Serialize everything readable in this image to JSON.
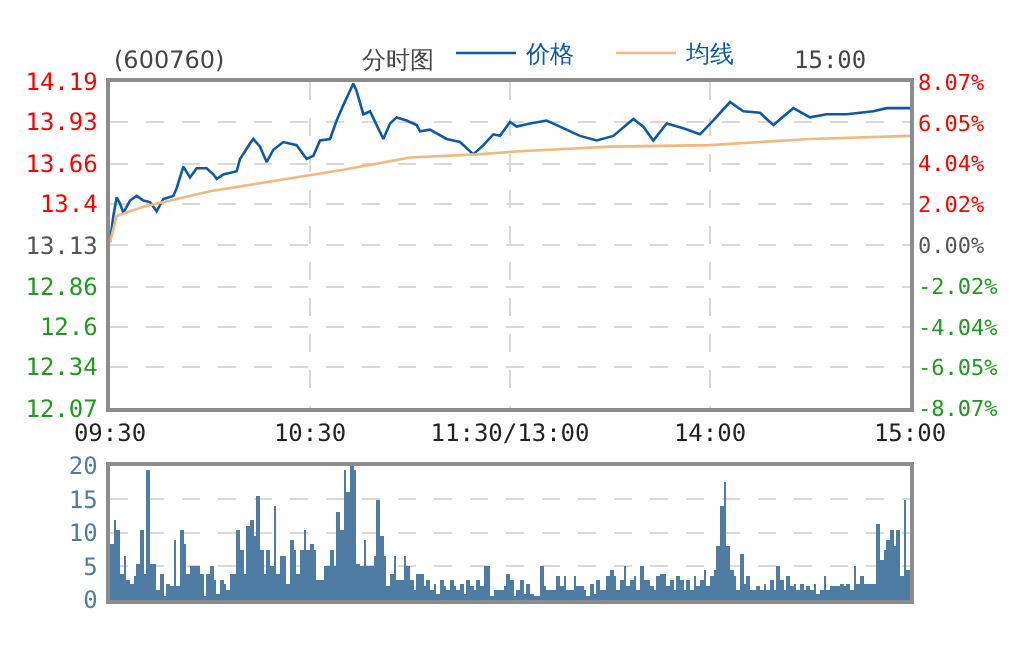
{
  "chart_data": [
    {
      "type": "line",
      "title": "(600760)",
      "subtitle": "分时图",
      "annotations": [
        "15:00"
      ],
      "legend": "top",
      "grid": true,
      "tick_labels": "xy",
      "categories": [
        "09:30",
        null,
        null,
        null,
        null,
        null,
        null,
        null,
        null,
        null,
        null,
        null,
        null,
        null,
        null,
        null,
        null,
        null,
        null,
        null,
        null,
        null,
        null,
        null,
        null,
        null,
        null,
        null,
        null,
        null,
        null,
        null,
        null,
        null,
        null,
        null,
        null,
        null,
        null,
        null,
        null,
        null,
        null,
        null,
        null,
        null,
        null,
        null,
        null,
        null,
        null,
        null,
        null,
        null,
        null,
        null,
        null,
        null,
        null,
        null,
        "10:30",
        null,
        null,
        null,
        null,
        null,
        null,
        null,
        null,
        null,
        null,
        null,
        null,
        null,
        null,
        null,
        null,
        null,
        null,
        null,
        null,
        null,
        null,
        null,
        null,
        null,
        null,
        null,
        null,
        null,
        null,
        null,
        null,
        null,
        null,
        null,
        null,
        null,
        null,
        null,
        null,
        null,
        null,
        null,
        null,
        null,
        null,
        null,
        null,
        null,
        null,
        null,
        null,
        null,
        null,
        null,
        null,
        null,
        null,
        null,
        "11:30/13:00",
        null,
        null,
        null,
        null,
        null,
        null,
        null,
        null,
        null,
        null,
        null,
        null,
        null,
        null,
        null,
        null,
        null,
        null,
        null,
        null,
        null,
        null,
        null,
        null,
        null,
        null,
        null,
        null,
        null,
        null,
        null,
        null,
        null,
        null,
        null,
        null,
        null,
        null,
        null,
        null,
        null,
        null,
        null,
        null,
        null,
        null,
        null,
        null,
        null,
        null,
        null,
        null,
        null,
        null,
        null,
        null,
        null,
        null,
        null,
        "14:00",
        null,
        null,
        null,
        null,
        null,
        null,
        null,
        null,
        null,
        null,
        null,
        null,
        null,
        null,
        null,
        null,
        null,
        null,
        null,
        null,
        null,
        null,
        null,
        null,
        null,
        null,
        null,
        null,
        null,
        null,
        null,
        null,
        null,
        null,
        null,
        null,
        null,
        null,
        null,
        null,
        null,
        null,
        null,
        null,
        null,
        null,
        null,
        null,
        null,
        null,
        null,
        null,
        null,
        null,
        null,
        null,
        null,
        null,
        null,
        "15:00"
      ],
      "ylim": [
        12.07,
        14.19
      ],
      "yticks": [
        12.07,
        12.34,
        12.6,
        12.86,
        13.13,
        13.4,
        13.66,
        13.93,
        14.19
      ],
      "y2lim": [
        -8.07,
        8.07
      ],
      "y2ticks": [
        {
          "value": -8.07,
          "label": "-8.07%"
        },
        {
          "value": -6.05,
          "label": "-6.05%"
        },
        {
          "value": -4.04,
          "label": "-4.04%"
        },
        {
          "value": -2.02,
          "label": "-2.02%"
        },
        {
          "value": 0,
          "label": "0.00%"
        },
        {
          "value": 2.02,
          "label": "2.02%"
        },
        {
          "value": 4.04,
          "label": "4.04%"
        },
        {
          "value": 6.05,
          "label": "6.05%"
        },
        {
          "value": 8.07,
          "label": "8.07%"
        }
      ],
      "series": [
        {
          "name": "价格",
          "color": "#0a5aa8",
          "values": [
            13.15,
            13.32,
            13.44,
            13.4,
            13.34,
            null,
            13.42,
            null,
            13.45,
            null,
            13.42,
            null,
            13.41,
            null,
            13.35,
            null,
            13.43,
            null,
            null,
            13.45,
            13.5,
            null,
            13.64,
            null,
            13.57,
            null,
            13.63,
            null,
            null,
            13.63,
            null,
            13.59,
            13.56,
            null,
            13.59,
            null,
            null,
            null,
            13.61,
            13.69,
            null,
            null,
            13.79,
            13.82,
            null,
            13.77,
            null,
            13.67,
            null,
            13.75,
            null,
            null,
            13.8,
            null,
            null,
            null,
            13.78,
            null,
            null,
            13.69,
            null,
            13.71,
            null,
            13.81,
            null,
            null,
            13.82,
            null,
            13.94,
            null,
            14.04,
            null,
            null,
            14.18,
            14.13,
            null,
            13.98,
            null,
            14.0,
            null,
            13.91,
            null,
            13.82,
            null,
            13.92,
            null,
            13.96,
            null,
            null,
            13.94,
            null,
            null,
            13.91,
            13.87,
            null,
            null,
            13.88,
            null,
            null,
            null,
            null,
            13.82,
            null,
            null,
            null,
            13.8,
            null,
            null,
            null,
            13.72,
            null,
            null,
            13.78,
            null,
            null,
            13.85,
            null,
            13.84,
            null,
            null,
            13.93,
            null,
            13.9,
            null,
            null,
            null,
            13.92,
            null,
            null,
            null,
            null,
            13.94,
            null,
            null,
            null,
            13.9,
            null,
            null,
            null,
            null,
            null,
            13.84,
            null,
            null,
            null,
            null,
            13.81,
            null,
            null,
            null,
            null,
            13.84,
            null,
            null,
            null,
            null,
            null,
            13.95,
            null,
            null,
            13.9,
            null,
            null,
            13.81,
            null,
            null,
            null,
            13.92,
            null,
            null,
            null,
            null,
            13.89,
            null,
            null,
            null,
            null,
            13.85,
            null,
            null,
            null,
            13.94,
            null,
            null,
            null,
            null,
            14.06,
            null,
            null,
            null,
            14.0,
            null,
            null,
            null,
            null,
            13.99,
            null,
            null,
            null,
            13.91,
            null,
            null,
            null,
            null,
            null,
            14.02,
            null,
            null,
            null,
            null,
            13.96,
            null,
            null,
            null,
            null,
            13.98,
            null,
            null,
            null,
            null,
            null,
            13.98,
            null,
            null,
            null,
            null,
            null,
            null,
            null,
            14.0,
            null,
            null,
            null,
            14.02,
            null,
            null,
            null,
            null,
            null,
            null,
            14.02
          ]
        },
        {
          "name": "均线",
          "color": "#f5b77a",
          "values": [
            13.15,
            null,
            13.32,
            null,
            null,
            null,
            null,
            null,
            null,
            null,
            13.38,
            null,
            null,
            null,
            null,
            null,
            null,
            null,
            null,
            null,
            null,
            null,
            null,
            null,
            null,
            null,
            null,
            null,
            null,
            null,
            13.48,
            null,
            null,
            null,
            null,
            null,
            null,
            null,
            null,
            null,
            null,
            null,
            null,
            null,
            null,
            null,
            null,
            null,
            null,
            null,
            13.55,
            null,
            null,
            null,
            null,
            null,
            null,
            null,
            null,
            null,
            null,
            null,
            null,
            null,
            null,
            null,
            null,
            null,
            null,
            null,
            13.62,
            null,
            null,
            null,
            null,
            null,
            null,
            null,
            null,
            null,
            null,
            null,
            null,
            null,
            null,
            null,
            null,
            null,
            null,
            null,
            13.7,
            null,
            null,
            null,
            null,
            null,
            null,
            null,
            null,
            null,
            null,
            null,
            null,
            null,
            null,
            null,
            null,
            null,
            null,
            null,
            13.72,
            null,
            null,
            null,
            null,
            null,
            null,
            null,
            null,
            null,
            null,
            null,
            null,
            13.74,
            null,
            null,
            null,
            null,
            null,
            null,
            null,
            null,
            null,
            null,
            null,
            null,
            null,
            null,
            null,
            null,
            null,
            null,
            null,
            null,
            null,
            null,
            null,
            null,
            null,
            null,
            13.77,
            null,
            null,
            null,
            null,
            null,
            null,
            null,
            null,
            null,
            null,
            null,
            null,
            null,
            null,
            null,
            null,
            null,
            null,
            null,
            null,
            null,
            null,
            null,
            null,
            null,
            null,
            null,
            null,
            null,
            13.78,
            null,
            null,
            null,
            null,
            null,
            null,
            null,
            null,
            null,
            null,
            null,
            null,
            null,
            null,
            null,
            null,
            null,
            null,
            null,
            null,
            null,
            null,
            null,
            null,
            null,
            null,
            null,
            null,
            null,
            13.82,
            null,
            null,
            null,
            null,
            null,
            null,
            null,
            null,
            null,
            null,
            null,
            null,
            null,
            null,
            null,
            null,
            null,
            null,
            null,
            null,
            null,
            null,
            null,
            null,
            null,
            null,
            null,
            null,
            null,
            13.84
          ]
        }
      ]
    },
    {
      "type": "bar",
      "grid": "y",
      "tick_labels": "y",
      "color": "#4f7ca3",
      "ylim": [
        0,
        20
      ],
      "yticks": [
        0,
        5,
        10,
        15,
        20
      ],
      "categories": [
        null,
        null,
        null,
        null,
        null,
        null,
        null,
        null,
        null,
        null,
        null,
        null,
        null,
        null,
        null,
        null,
        null,
        null,
        null,
        null,
        null,
        null,
        null,
        null,
        null,
        null,
        null,
        null,
        null,
        null,
        null,
        null,
        null,
        null,
        null,
        null,
        null,
        null,
        null,
        null,
        null,
        null,
        null,
        null,
        null,
        null,
        null,
        null,
        null,
        null,
        null,
        null,
        null,
        null,
        null,
        null,
        null,
        null,
        null,
        null,
        null,
        null,
        null,
        null,
        null,
        null,
        null,
        null,
        null,
        null,
        null,
        null,
        null,
        null,
        null,
        null,
        null,
        null,
        null,
        null,
        null,
        null,
        null,
        null,
        null,
        null,
        null,
        null,
        null,
        null,
        null,
        null,
        null,
        null,
        null,
        null,
        null,
        null,
        null,
        null,
        null,
        null,
        null,
        null,
        null,
        null,
        null,
        null,
        null,
        null,
        null,
        null,
        null,
        null,
        null,
        null,
        null,
        null,
        null,
        null,
        null,
        null,
        null,
        null,
        null,
        null,
        null,
        null,
        null,
        null,
        null,
        null,
        null,
        null,
        null,
        null,
        null,
        null,
        null,
        null,
        null,
        null,
        null,
        null,
        null,
        null,
        null,
        null,
        null,
        null,
        null,
        null,
        null,
        null,
        null,
        null,
        null,
        null,
        null,
        null,
        null,
        null,
        null,
        null,
        null,
        null,
        null,
        null,
        null,
        null,
        null,
        null,
        null,
        null,
        null,
        null,
        null,
        null,
        null,
        null,
        null,
        null,
        null,
        null,
        null,
        null,
        null,
        null,
        null,
        null,
        null,
        null,
        null,
        null,
        null,
        null,
        null,
        null,
        null,
        null,
        null,
        null,
        null,
        null,
        null,
        null,
        null,
        null,
        null,
        null,
        null,
        null,
        null,
        null,
        null,
        null,
        null,
        null,
        null,
        null,
        null,
        null,
        null,
        null,
        null,
        null,
        null,
        null,
        null,
        null,
        null,
        null,
        null,
        null,
        null,
        null,
        null,
        null,
        null,
        null
      ],
      "values": [
        8.5,
        12,
        10.5,
        4,
        6.5,
        3,
        2.5,
        3.5,
        5.5,
        10.5,
        4,
        19.5,
        5.5,
        5.5,
        1.5,
        4,
        0.5,
        2.5,
        2,
        9,
        2,
        10.5,
        8.5,
        4,
        5,
        5,
        5,
        4,
        0.5,
        4,
        5,
        3,
        1,
        3,
        2.5,
        1.5,
        4,
        4,
        10.5,
        7.5,
        4,
        11,
        12,
        9.5,
        15.5,
        7.5,
        4,
        7.5,
        5,
        14,
        4,
        6.5,
        6.5,
        2.5,
        9,
        7.5,
        4,
        7.5,
        10.5,
        7.5,
        8.5,
        7.5,
        3,
        3,
        5,
        5,
        7.5,
        5,
        13,
        10.5,
        19.5,
        16,
        20,
        19.5,
        5.5,
        5,
        9,
        5,
        5,
        6.5,
        15,
        9.5,
        6.5,
        2,
        4,
        6.5,
        3,
        3,
        6.5,
        5,
        3,
        1.5,
        4,
        4,
        2,
        3,
        1.5,
        2.5,
        1,
        3,
        2,
        1.5,
        3,
        2,
        1.5,
        2.5,
        1,
        3,
        2,
        1.5,
        3,
        2,
        5,
        5,
        0.5,
        1.5,
        1.5,
        1.5,
        2,
        4,
        3,
        0.5,
        1.5,
        3,
        1,
        2.5,
        1,
        0.5,
        0.5,
        5,
        2,
        1.5,
        1.5,
        1.5,
        3.5,
        2,
        3.5,
        1.5,
        1.5,
        3.5,
        2,
        2,
        1.5,
        0.5,
        2.5,
        1,
        3,
        1.5,
        1.5,
        3.5,
        4.5,
        3.5,
        1.5,
        3,
        5,
        2,
        3,
        3.5,
        1.5,
        5,
        3,
        3,
        2,
        1.5,
        3.5,
        4,
        4,
        2,
        3,
        1.5,
        3.5,
        3,
        1.5,
        3,
        1.5,
        3.5,
        2,
        3,
        4.5,
        2,
        3.5,
        4.5,
        8,
        14,
        17.5,
        8,
        4.5,
        3.5,
        1.5,
        7,
        2.5,
        3.5,
        1.5,
        1.5,
        2,
        1.5,
        2.5,
        1.5,
        3,
        1.5,
        5,
        3,
        1.5,
        3.5,
        2,
        2.5,
        1.5,
        2.5,
        1.5,
        2,
        1.5,
        2.5,
        1,
        1.5,
        3.5,
        1.5,
        2,
        2,
        2,
        2.5,
        2,
        2.5,
        1.5,
        5,
        2.5,
        3.5,
        2.5,
        2.5,
        2.5,
        2.5,
        11.5,
        6,
        7.5,
        9,
        10.5,
        8,
        10.5,
        3.5,
        15,
        4.5
      ]
    }
  ]
}
